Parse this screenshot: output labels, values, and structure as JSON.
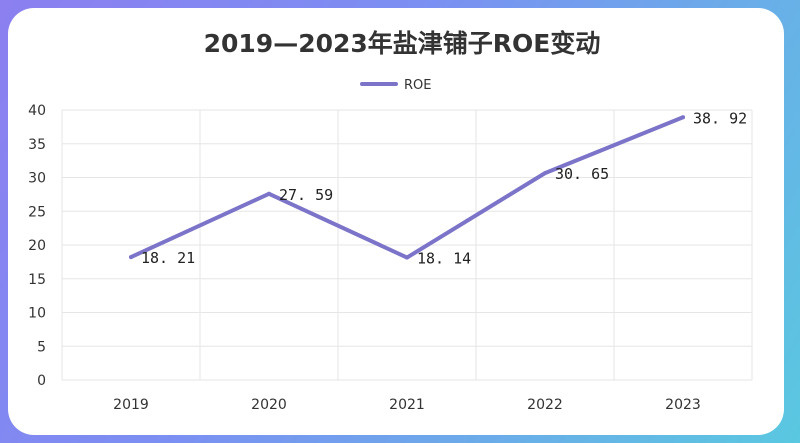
{
  "chart_data": {
    "type": "line",
    "title": "2019—2023年盐津铺子ROE变动",
    "categories": [
      "2019",
      "2020",
      "2021",
      "2022",
      "2023"
    ],
    "series": [
      {
        "name": "ROE",
        "values": [
          18.21,
          27.59,
          18.14,
          30.65,
          38.92
        ],
        "labels": [
          "18. 21",
          "27. 59",
          "18. 14",
          "30. 65",
          "38. 92"
        ]
      }
    ],
    "ylim": [
      0,
      40
    ],
    "yticks": [
      0,
      5,
      10,
      15,
      20,
      25,
      30,
      35,
      40
    ],
    "ytick_labels": [
      "0",
      "5",
      "10",
      "15",
      "20",
      "25",
      "30",
      "35",
      "40"
    ],
    "grid": true,
    "legend_position": "top-center",
    "colors": {
      "series": "#7b74c9",
      "grid": "#e6e6e6",
      "card": "#ffffff",
      "frame_left": "#8c7ff0",
      "frame_right": "#5ac8e0"
    }
  }
}
